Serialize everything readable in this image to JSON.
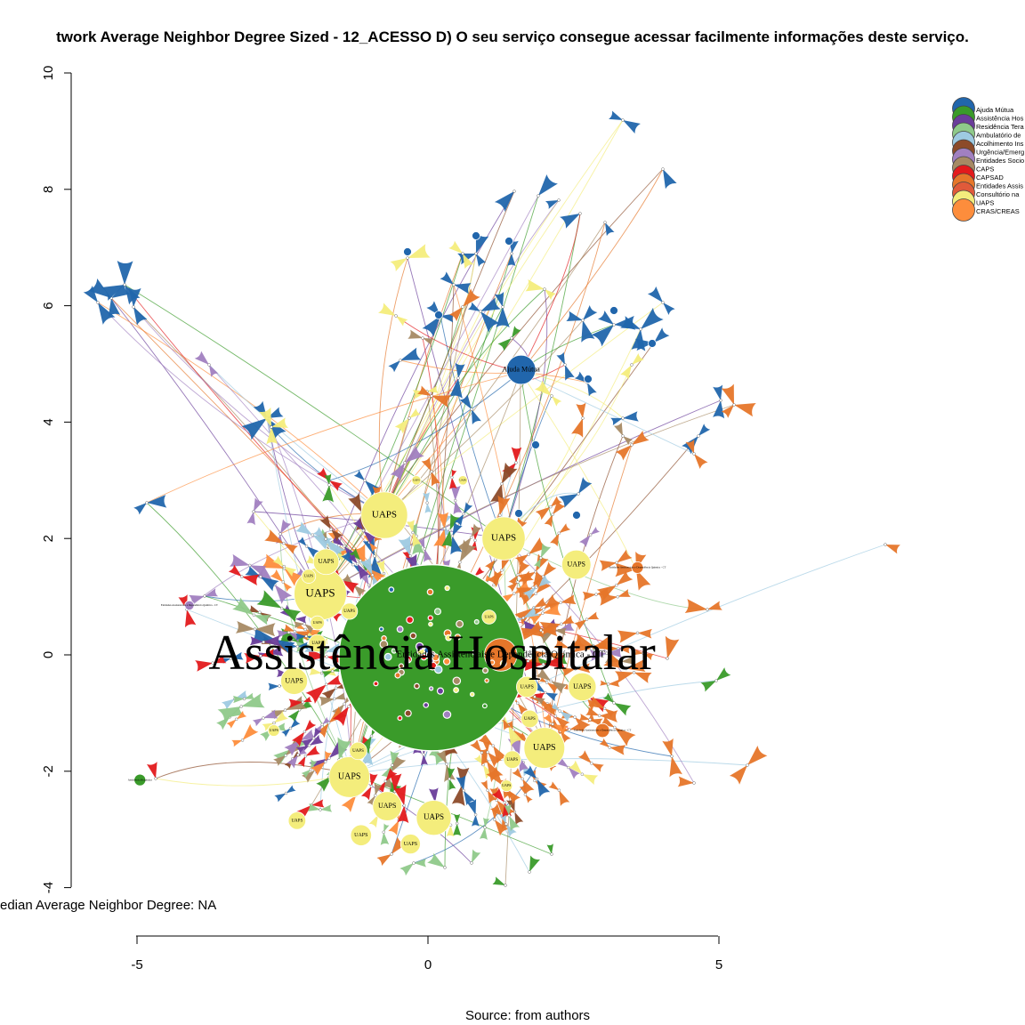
{
  "title": "twork Average Neighbor Degree Sized - 12_ACESSO D) O seu serviço consegue acessar facilmente informações deste serviço.",
  "median_text": "edian Average Neighbor Degree: NA",
  "source_text": "Source: from authors",
  "colors": {
    "blue": "#2166ac",
    "green": "#3a9b2a",
    "purple": "#6a3d9a",
    "lightgreen": "#8fc98a",
    "lightblue": "#9ecae1",
    "brown": "#8c4b2a",
    "lavender": "#a180c0",
    "tan": "#a68a64",
    "red": "#e31a1c",
    "orange": "#e6762a",
    "coral": "#e05a3a",
    "yellow": "#f4ed7c",
    "lightorange": "#fd8d3c"
  },
  "chart_data": {
    "type": "network",
    "xlim": [
      -5,
      5
    ],
    "ylim": [
      -4,
      10
    ],
    "x_ticks": [
      -5,
      0,
      5
    ],
    "y_ticks": [
      -4,
      -2,
      0,
      2,
      4,
      6,
      8,
      10
    ],
    "legend": [
      {
        "label": "Ajuda Mútua",
        "color": "#2166ac"
      },
      {
        "label": "Assistência Hos",
        "color": "#3a9b2a"
      },
      {
        "label": "Residência Tera",
        "color": "#6a3d9a"
      },
      {
        "label": "Ambulatório de",
        "color": "#8fc98a"
      },
      {
        "label": "Acolhimento Ins",
        "color": "#9ecae1"
      },
      {
        "label": "Urgência/Emerg",
        "color": "#8c4b2a"
      },
      {
        "label": "Entidades Socio",
        "color": "#a180c0"
      },
      {
        "label": "CAPS",
        "color": "#a68a64"
      },
      {
        "label": "CAPSAD",
        "color": "#e31a1c"
      },
      {
        "label": "Entidades Assis",
        "color": "#e6762a"
      },
      {
        "label": "Consultório na",
        "color": "#e05a3a"
      },
      {
        "label": "UAPS",
        "color": "#f4ed7c"
      },
      {
        "label": "CRAS/CREAS",
        "color": "#fd8d3c"
      }
    ],
    "labeled_nodes": [
      {
        "label": "Assistência Hospitalar",
        "x": 0.07,
        "y": -0.05,
        "r": 1.6,
        "color": "#3a9b2a",
        "font": 56
      },
      {
        "label": "Entidades Assistenciais e Dependência Química - CT",
        "x": 1.25,
        "y": 0.0,
        "r": 0.28,
        "color": "#e6762a",
        "font": 11
      },
      {
        "label": "Ajuda Mútua",
        "x": 1.6,
        "y": 4.9,
        "r": 0.25,
        "color": "#2166ac",
        "font": 8
      },
      {
        "label": "Assistência Hospitalar",
        "x": -4.95,
        "y": -2.15,
        "r": 0.1,
        "color": "#3a9b2a",
        "font": 3
      },
      {
        "label": "UAPS",
        "x": -0.75,
        "y": 2.4,
        "r": 0.4,
        "color": "#f4ed7c",
        "font": 11
      },
      {
        "label": "UAPS",
        "x": 1.3,
        "y": 2.0,
        "r": 0.37,
        "color": "#f4ed7c",
        "font": 11
      },
      {
        "label": "UAPS",
        "x": -1.85,
        "y": 1.05,
        "r": 0.45,
        "color": "#f4ed7c",
        "font": 13
      },
      {
        "label": "UAPS",
        "x": -1.75,
        "y": 1.6,
        "r": 0.22,
        "color": "#f4ed7c",
        "font": 7
      },
      {
        "label": "UAPS",
        "x": 2.55,
        "y": 1.55,
        "r": 0.25,
        "color": "#f4ed7c",
        "font": 8
      },
      {
        "label": "UAPS",
        "x": 2.65,
        "y": -0.55,
        "r": 0.24,
        "color": "#f4ed7c",
        "font": 8
      },
      {
        "label": "UAPS",
        "x": 2.0,
        "y": -1.6,
        "r": 0.35,
        "color": "#f4ed7c",
        "font": 10
      },
      {
        "label": "UAPS",
        "x": -2.3,
        "y": -0.45,
        "r": 0.23,
        "color": "#f4ed7c",
        "font": 8
      },
      {
        "label": "UAPS",
        "x": -1.35,
        "y": -2.1,
        "r": 0.35,
        "color": "#f4ed7c",
        "font": 10
      },
      {
        "label": "UAPS",
        "x": -0.7,
        "y": -2.6,
        "r": 0.25,
        "color": "#f4ed7c",
        "font": 8
      },
      {
        "label": "UAPS",
        "x": 0.1,
        "y": -2.8,
        "r": 0.3,
        "color": "#f4ed7c",
        "font": 9
      },
      {
        "label": "UAPS",
        "x": -1.15,
        "y": -3.1,
        "r": 0.18,
        "color": "#f4ed7c",
        "font": 6
      },
      {
        "label": "UAPS",
        "x": -0.3,
        "y": -3.25,
        "r": 0.17,
        "color": "#f4ed7c",
        "font": 6
      },
      {
        "label": "UAPS",
        "x": -2.25,
        "y": -2.85,
        "r": 0.15,
        "color": "#f4ed7c",
        "font": 5
      },
      {
        "label": "UAPS",
        "x": 1.7,
        "y": -0.55,
        "r": 0.18,
        "color": "#f4ed7c",
        "font": 6
      },
      {
        "label": "UAPS",
        "x": 1.75,
        "y": -1.1,
        "r": 0.15,
        "color": "#f4ed7c",
        "font": 5
      },
      {
        "label": "UAPS",
        "x": 1.45,
        "y": -1.8,
        "r": 0.15,
        "color": "#f4ed7c",
        "font": 5
      },
      {
        "label": "UAPS",
        "x": -1.2,
        "y": -1.65,
        "r": 0.15,
        "color": "#f4ed7c",
        "font": 5
      },
      {
        "label": "UAPS",
        "x": -1.9,
        "y": 0.2,
        "r": 0.15,
        "color": "#f4ed7c",
        "font": 5
      },
      {
        "label": "UAPS",
        "x": -1.35,
        "y": 0.75,
        "r": 0.14,
        "color": "#f4ed7c",
        "font": 5
      },
      {
        "label": "UAPS",
        "x": -2.05,
        "y": 1.35,
        "r": 0.12,
        "color": "#f4ed7c",
        "font": 4
      },
      {
        "label": "UAPS",
        "x": -1.9,
        "y": 0.55,
        "r": 0.12,
        "color": "#f4ed7c",
        "font": 4
      },
      {
        "label": "UAPS",
        "x": 1.05,
        "y": 0.65,
        "r": 0.12,
        "color": "#f4ed7c",
        "font": 4
      },
      {
        "label": "UAPS",
        "x": -2.65,
        "y": -1.3,
        "r": 0.1,
        "color": "#f4ed7c",
        "font": 4
      },
      {
        "label": "UAPS",
        "x": 1.35,
        "y": -2.25,
        "r": 0.1,
        "color": "#f4ed7c",
        "font": 4
      },
      {
        "label": "UAPS",
        "x": -0.2,
        "y": 3.0,
        "r": 0.08,
        "color": "#f4ed7c",
        "font": 3
      },
      {
        "label": "UAPS",
        "x": 0.6,
        "y": 3.0,
        "r": 0.08,
        "color": "#f4ed7c",
        "font": 3
      },
      {
        "label": "Entidades Assistenciais e Dependência Química - CT",
        "x": 3.6,
        "y": 1.5,
        "r": 0.1,
        "color": "#e6762a",
        "font": 3
      },
      {
        "label": "Entidades Assistenciais e Dependência Química - CT",
        "x": 3.0,
        "y": -1.3,
        "r": 0.12,
        "color": "#e6762a",
        "font": 3
      },
      {
        "label": "Entidades Assistenciais e Dependência Química - CT",
        "x": -4.1,
        "y": 0.85,
        "r": 0.08,
        "color": "#a180c0",
        "font": 3
      }
    ]
  }
}
